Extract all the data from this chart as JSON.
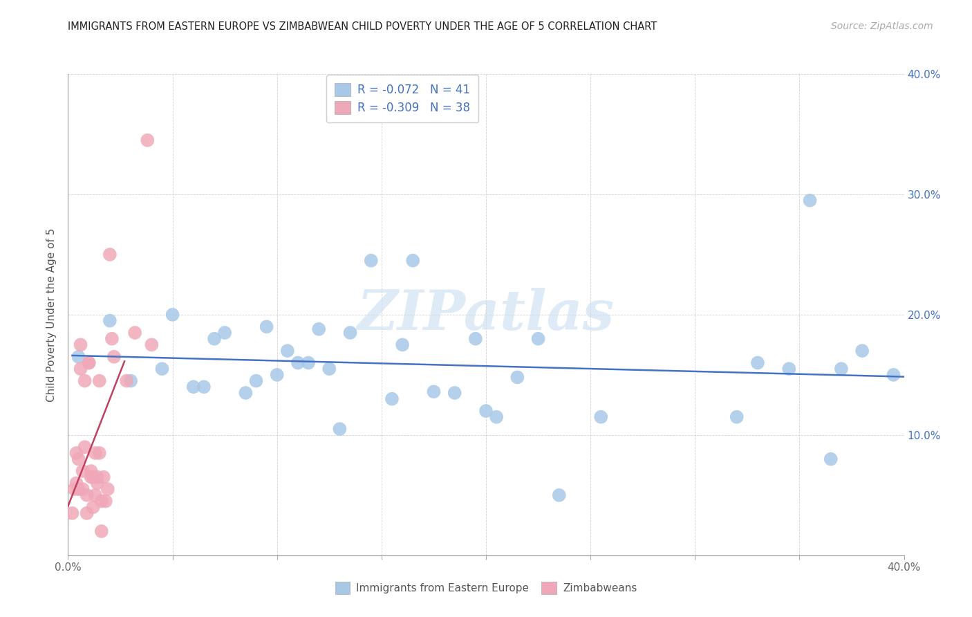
{
  "title": "IMMIGRANTS FROM EASTERN EUROPE VS ZIMBABWEAN CHILD POVERTY UNDER THE AGE OF 5 CORRELATION CHART",
  "source": "Source: ZipAtlas.com",
  "ylabel": "Child Poverty Under the Age of 5",
  "xlim": [
    0.0,
    0.4
  ],
  "ylim": [
    0.0,
    0.4
  ],
  "legend_r_blue": "R = -0.072",
  "legend_n_blue": "N = 41",
  "legend_r_pink": "R = -0.309",
  "legend_n_pink": "N = 38",
  "blue_color": "#a8c8e8",
  "pink_color": "#f0a8b8",
  "line_blue_color": "#4472c4",
  "line_pink_color": "#c04060",
  "watermark": "ZIPatlas",
  "blue_scatter_x": [
    0.005,
    0.02,
    0.03,
    0.045,
    0.05,
    0.06,
    0.065,
    0.07,
    0.075,
    0.085,
    0.09,
    0.095,
    0.1,
    0.105,
    0.11,
    0.115,
    0.12,
    0.125,
    0.13,
    0.135,
    0.145,
    0.155,
    0.16,
    0.165,
    0.175,
    0.185,
    0.195,
    0.2,
    0.205,
    0.215,
    0.225,
    0.235,
    0.255,
    0.32,
    0.33,
    0.345,
    0.355,
    0.365,
    0.37,
    0.38,
    0.395
  ],
  "blue_scatter_y": [
    0.165,
    0.195,
    0.145,
    0.155,
    0.2,
    0.14,
    0.14,
    0.18,
    0.185,
    0.135,
    0.145,
    0.19,
    0.15,
    0.17,
    0.16,
    0.16,
    0.188,
    0.155,
    0.105,
    0.185,
    0.245,
    0.13,
    0.175,
    0.245,
    0.136,
    0.135,
    0.18,
    0.12,
    0.115,
    0.148,
    0.18,
    0.05,
    0.115,
    0.115,
    0.16,
    0.155,
    0.295,
    0.08,
    0.155,
    0.17,
    0.15
  ],
  "pink_scatter_x": [
    0.002,
    0.003,
    0.004,
    0.004,
    0.005,
    0.005,
    0.006,
    0.006,
    0.007,
    0.007,
    0.008,
    0.008,
    0.009,
    0.009,
    0.01,
    0.01,
    0.011,
    0.011,
    0.012,
    0.012,
    0.013,
    0.013,
    0.014,
    0.014,
    0.015,
    0.015,
    0.016,
    0.016,
    0.017,
    0.018,
    0.019,
    0.02,
    0.021,
    0.022,
    0.028,
    0.032,
    0.038,
    0.04
  ],
  "pink_scatter_y": [
    0.035,
    0.055,
    0.06,
    0.085,
    0.055,
    0.08,
    0.175,
    0.155,
    0.055,
    0.07,
    0.145,
    0.09,
    0.05,
    0.035,
    0.16,
    0.16,
    0.07,
    0.065,
    0.065,
    0.04,
    0.085,
    0.05,
    0.065,
    0.06,
    0.145,
    0.085,
    0.045,
    0.02,
    0.065,
    0.045,
    0.055,
    0.25,
    0.18,
    0.165,
    0.145,
    0.185,
    0.345,
    0.175
  ]
}
